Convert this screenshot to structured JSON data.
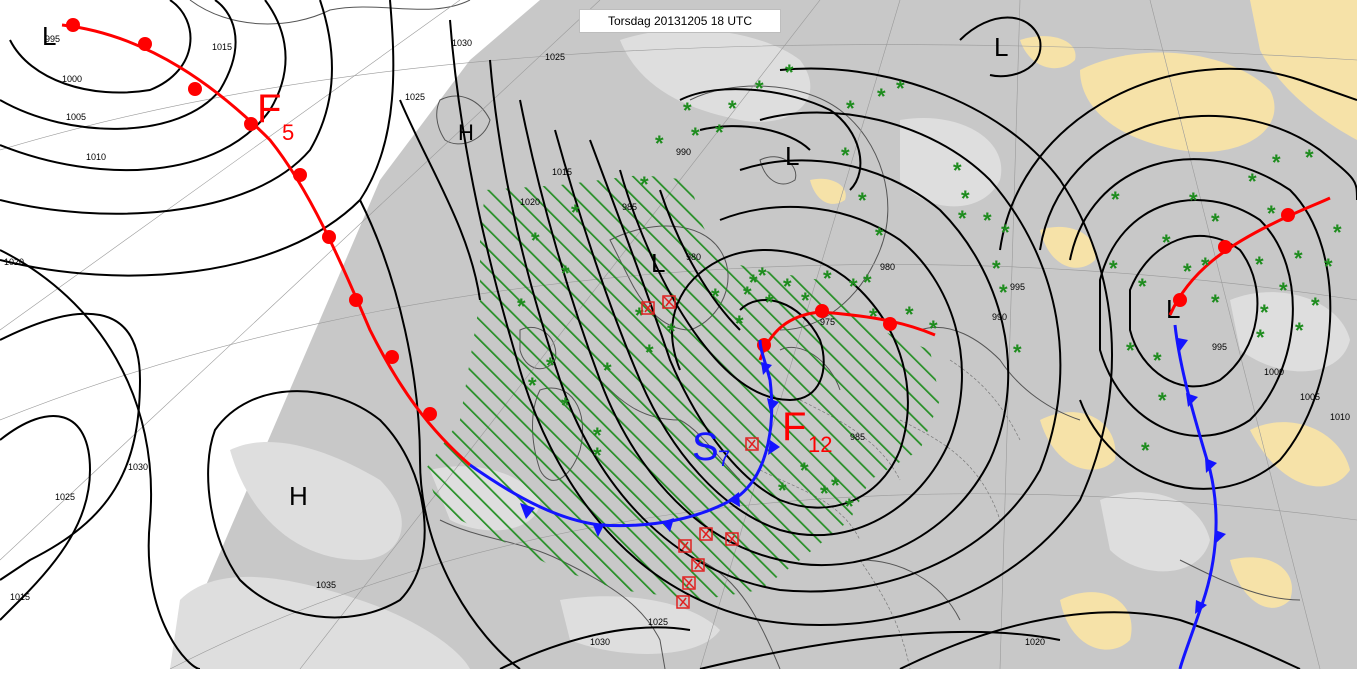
{
  "title": "Torsdag 20131205 18 UTC",
  "colors": {
    "background": "#ffffff",
    "model_domain": "#c8c8c8",
    "cloud": "#dedede",
    "sunny_land": "#f6e2a8",
    "isobar": "#000000",
    "warm_front": "#ff0000",
    "cold_front": "#1414ff",
    "rain_hatch": "#1e8c1e",
    "snow": "#1e8c1e",
    "wind_symbol": "#e02020"
  },
  "pressure_centers": [
    {
      "label": "L"
    },
    {
      "label": "L"
    },
    {
      "label": "L"
    },
    {
      "label": "L"
    },
    {
      "label": "L"
    },
    {
      "label": "H"
    },
    {
      "label": "H"
    }
  ],
  "isobar_labels": [
    "995",
    "1000",
    "1005",
    "1010",
    "1015",
    "1020",
    "1025",
    "1030",
    "1015",
    "1030",
    "1025",
    "1035",
    "985",
    "980",
    "990",
    "990",
    "995",
    "1000",
    "1005",
    "1010",
    "980",
    "995",
    "1015",
    "985",
    "1020",
    "975",
    "1030",
    "1025",
    "1020",
    "1025"
  ],
  "front_labels": {
    "f_north": {
      "letter": "F",
      "number": "5"
    },
    "f_baltic": {
      "letter": "F",
      "number": "12"
    },
    "s_center": {
      "letter": "S",
      "number": "7"
    }
  },
  "legend_icons": [
    "snow-star-icon",
    "wind-warning-icon"
  ]
}
